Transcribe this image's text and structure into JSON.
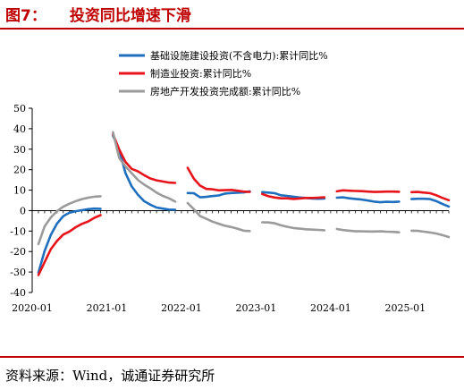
{
  "header": {
    "figure_label": "图7：",
    "title": "投资同比增速下滑"
  },
  "source": "资料来源：Wind，诚通证券研究所",
  "chart_data": {
    "type": "line",
    "title": "投资同比增速下滑",
    "xlabel": "",
    "ylabel": "",
    "ylim": [
      -40,
      50
    ],
    "yticks": [
      -40,
      -30,
      -20,
      -10,
      0,
      10,
      20,
      30,
      40,
      50
    ],
    "xlim": [
      "2020-01",
      "2025-08"
    ],
    "xticks": [
      "2020-01",
      "2021-01",
      "2022-01",
      "2023-01",
      "2024-01",
      "2025-01"
    ],
    "grid": false,
    "legend_position": "top-right",
    "series": [
      {
        "name": "基础设施建设投资(不含电力):累计同比%",
        "color": "#1f6fbf",
        "points": [
          [
            "2020-02",
            -30.3
          ],
          [
            "2020-03",
            -19.7
          ],
          [
            "2020-04",
            -11.8
          ],
          [
            "2020-05",
            -6.3
          ],
          [
            "2020-06",
            -2.7
          ],
          [
            "2020-07",
            -1.0
          ],
          [
            "2020-08",
            -0.3
          ],
          [
            "2020-09",
            0.2
          ],
          [
            "2020-10",
            0.7
          ],
          [
            "2020-11",
            1.0
          ],
          [
            "2020-12",
            0.9
          ],
          [
            "2021-02",
            36.6
          ],
          [
            "2021-03",
            29.7
          ],
          [
            "2021-04",
            18.4
          ],
          [
            "2021-05",
            11.8
          ],
          [
            "2021-06",
            7.8
          ],
          [
            "2021-07",
            4.6
          ],
          [
            "2021-08",
            2.9
          ],
          [
            "2021-09",
            1.5
          ],
          [
            "2021-10",
            1.0
          ],
          [
            "2021-11",
            0.5
          ],
          [
            "2021-12",
            0.4
          ],
          [
            "2022-02",
            8.6
          ],
          [
            "2022-03",
            8.5
          ],
          [
            "2022-04",
            6.5
          ],
          [
            "2022-05",
            6.7
          ],
          [
            "2022-06",
            7.1
          ],
          [
            "2022-07",
            7.4
          ],
          [
            "2022-08",
            8.3
          ],
          [
            "2022-09",
            8.6
          ],
          [
            "2022-10",
            8.7
          ],
          [
            "2022-11",
            8.9
          ],
          [
            "2022-12",
            9.4
          ],
          [
            "2023-02",
            9.0
          ],
          [
            "2023-03",
            8.8
          ],
          [
            "2023-04",
            8.5
          ],
          [
            "2023-05",
            7.5
          ],
          [
            "2023-06",
            7.2
          ],
          [
            "2023-07",
            6.8
          ],
          [
            "2023-08",
            6.4
          ],
          [
            "2023-09",
            6.2
          ],
          [
            "2023-10",
            5.9
          ],
          [
            "2023-11",
            5.8
          ],
          [
            "2023-12",
            5.9
          ],
          [
            "2024-02",
            6.3
          ],
          [
            "2024-03",
            6.5
          ],
          [
            "2024-04",
            6.0
          ],
          [
            "2024-05",
            5.7
          ],
          [
            "2024-06",
            5.4
          ],
          [
            "2024-07",
            4.9
          ],
          [
            "2024-08",
            4.4
          ],
          [
            "2024-09",
            4.1
          ],
          [
            "2024-10",
            4.3
          ],
          [
            "2024-11",
            4.2
          ],
          [
            "2024-12",
            4.4
          ],
          [
            "2025-02",
            5.6
          ],
          [
            "2025-03",
            5.8
          ],
          [
            "2025-04",
            5.8
          ],
          [
            "2025-05",
            5.6
          ],
          [
            "2025-06",
            4.6
          ],
          [
            "2025-07",
            3.2
          ],
          [
            "2025-08",
            2.0
          ]
        ]
      },
      {
        "name": "制造业投资:累计同比%",
        "color": "#e8141b",
        "points": [
          [
            "2020-02",
            -31.5
          ],
          [
            "2020-03",
            -25.2
          ],
          [
            "2020-04",
            -18.8
          ],
          [
            "2020-05",
            -14.8
          ],
          [
            "2020-06",
            -11.7
          ],
          [
            "2020-07",
            -10.2
          ],
          [
            "2020-08",
            -8.1
          ],
          [
            "2020-09",
            -6.5
          ],
          [
            "2020-10",
            -5.3
          ],
          [
            "2020-11",
            -3.5
          ],
          [
            "2020-12",
            -2.2
          ],
          [
            "2021-02",
            37.3
          ],
          [
            "2021-03",
            29.8
          ],
          [
            "2021-04",
            23.8
          ],
          [
            "2021-05",
            20.4
          ],
          [
            "2021-06",
            19.2
          ],
          [
            "2021-07",
            17.3
          ],
          [
            "2021-08",
            15.7
          ],
          [
            "2021-09",
            14.8
          ],
          [
            "2021-10",
            14.2
          ],
          [
            "2021-11",
            13.7
          ],
          [
            "2021-12",
            13.5
          ],
          [
            "2022-02",
            20.9
          ],
          [
            "2022-03",
            15.6
          ],
          [
            "2022-04",
            12.2
          ],
          [
            "2022-05",
            10.6
          ],
          [
            "2022-06",
            10.4
          ],
          [
            "2022-07",
            9.9
          ],
          [
            "2022-08",
            10.0
          ],
          [
            "2022-09",
            10.1
          ],
          [
            "2022-10",
            9.7
          ],
          [
            "2022-11",
            9.3
          ],
          [
            "2022-12",
            9.1
          ],
          [
            "2023-02",
            8.1
          ],
          [
            "2023-03",
            7.0
          ],
          [
            "2023-04",
            6.4
          ],
          [
            "2023-05",
            6.0
          ],
          [
            "2023-06",
            6.0
          ],
          [
            "2023-07",
            5.7
          ],
          [
            "2023-08",
            5.9
          ],
          [
            "2023-09",
            6.2
          ],
          [
            "2023-10",
            6.2
          ],
          [
            "2023-11",
            6.3
          ],
          [
            "2023-12",
            6.5
          ],
          [
            "2024-02",
            9.4
          ],
          [
            "2024-03",
            9.9
          ],
          [
            "2024-04",
            9.7
          ],
          [
            "2024-05",
            9.6
          ],
          [
            "2024-06",
            9.5
          ],
          [
            "2024-07",
            9.3
          ],
          [
            "2024-08",
            9.1
          ],
          [
            "2024-09",
            9.2
          ],
          [
            "2024-10",
            9.3
          ],
          [
            "2024-11",
            9.3
          ],
          [
            "2024-12",
            9.2
          ],
          [
            "2025-02",
            9.0
          ],
          [
            "2025-03",
            9.1
          ],
          [
            "2025-04",
            8.8
          ],
          [
            "2025-05",
            8.5
          ],
          [
            "2025-06",
            7.5
          ],
          [
            "2025-07",
            6.2
          ],
          [
            "2025-08",
            5.1
          ]
        ]
      },
      {
        "name": "房地产开发投资完成额:累计同比%",
        "color": "#9b9b9b",
        "points": [
          [
            "2020-02",
            -16.3
          ],
          [
            "2020-03",
            -7.7
          ],
          [
            "2020-04",
            -3.3
          ],
          [
            "2020-05",
            -0.3
          ],
          [
            "2020-06",
            1.9
          ],
          [
            "2020-07",
            3.4
          ],
          [
            "2020-08",
            4.6
          ],
          [
            "2020-09",
            5.6
          ],
          [
            "2020-10",
            6.3
          ],
          [
            "2020-11",
            6.8
          ],
          [
            "2020-12",
            7.0
          ],
          [
            "2021-02",
            38.3
          ],
          [
            "2021-03",
            25.6
          ],
          [
            "2021-04",
            21.6
          ],
          [
            "2021-05",
            18.3
          ],
          [
            "2021-06",
            15.0
          ],
          [
            "2021-07",
            12.7
          ],
          [
            "2021-08",
            10.9
          ],
          [
            "2021-09",
            8.8
          ],
          [
            "2021-10",
            7.2
          ],
          [
            "2021-11",
            6.0
          ],
          [
            "2021-12",
            4.4
          ],
          [
            "2022-02",
            3.7
          ],
          [
            "2022-03",
            0.7
          ],
          [
            "2022-04",
            -2.7
          ],
          [
            "2022-05",
            -4.0
          ],
          [
            "2022-06",
            -5.4
          ],
          [
            "2022-07",
            -6.4
          ],
          [
            "2022-08",
            -7.4
          ],
          [
            "2022-09",
            -8.0
          ],
          [
            "2022-10",
            -8.8
          ],
          [
            "2022-11",
            -9.8
          ],
          [
            "2022-12",
            -10.0
          ],
          [
            "2023-02",
            -5.7
          ],
          [
            "2023-03",
            -5.8
          ],
          [
            "2023-04",
            -6.2
          ],
          [
            "2023-05",
            -7.2
          ],
          [
            "2023-06",
            -7.9
          ],
          [
            "2023-07",
            -8.5
          ],
          [
            "2023-08",
            -8.8
          ],
          [
            "2023-09",
            -9.1
          ],
          [
            "2023-10",
            -9.3
          ],
          [
            "2023-11",
            -9.4
          ],
          [
            "2023-12",
            -9.6
          ],
          [
            "2024-02",
            -9.0
          ],
          [
            "2024-03",
            -9.5
          ],
          [
            "2024-04",
            -9.8
          ],
          [
            "2024-05",
            -10.1
          ],
          [
            "2024-06",
            -10.1
          ],
          [
            "2024-07",
            -10.2
          ],
          [
            "2024-08",
            -10.2
          ],
          [
            "2024-09",
            -10.1
          ],
          [
            "2024-10",
            -10.3
          ],
          [
            "2024-11",
            -10.4
          ],
          [
            "2024-12",
            -10.6
          ],
          [
            "2025-02",
            -9.8
          ],
          [
            "2025-03",
            -9.9
          ],
          [
            "2025-04",
            -10.3
          ],
          [
            "2025-05",
            -10.7
          ],
          [
            "2025-06",
            -11.2
          ],
          [
            "2025-07",
            -12.0
          ],
          [
            "2025-08",
            -12.9
          ]
        ]
      }
    ]
  }
}
